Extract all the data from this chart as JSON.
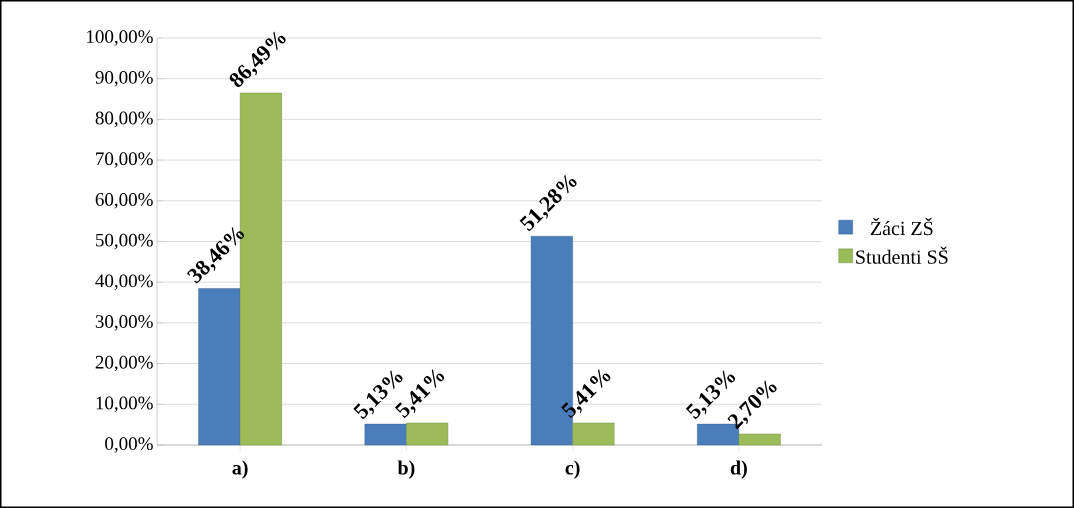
{
  "chart_data": {
    "type": "bar",
    "categories": [
      "a)",
      "b)",
      "c)",
      "d)"
    ],
    "series": [
      {
        "name": "Žáci ZŠ",
        "color": "#4a7ebb",
        "values": [
          38.46,
          5.13,
          51.28,
          5.13
        ],
        "value_labels": [
          "38,46%",
          "5,13%",
          "51,28%",
          "5,13%"
        ]
      },
      {
        "name": "Studenti SŠ",
        "color": "#9bbb59",
        "values": [
          86.49,
          5.41,
          5.41,
          2.7
        ],
        "value_labels": [
          "86,49%",
          "5,41%",
          "5,41%",
          "2,70%"
        ]
      }
    ],
    "ylim": [
      0,
      100
    ],
    "yticks": [
      {
        "value": 0,
        "label": "0,00%"
      },
      {
        "value": 10,
        "label": "10,00%"
      },
      {
        "value": 20,
        "label": "20,00%"
      },
      {
        "value": 30,
        "label": "30,00%"
      },
      {
        "value": 40,
        "label": "40,00%"
      },
      {
        "value": 50,
        "label": "50,00%"
      },
      {
        "value": 60,
        "label": "60,00%"
      },
      {
        "value": 70,
        "label": "70,00%"
      },
      {
        "value": 80,
        "label": "80,00%"
      },
      {
        "value": 90,
        "label": "90,00%"
      },
      {
        "value": 100,
        "label": "100,00%"
      }
    ],
    "grid": "y",
    "legend": "right"
  }
}
